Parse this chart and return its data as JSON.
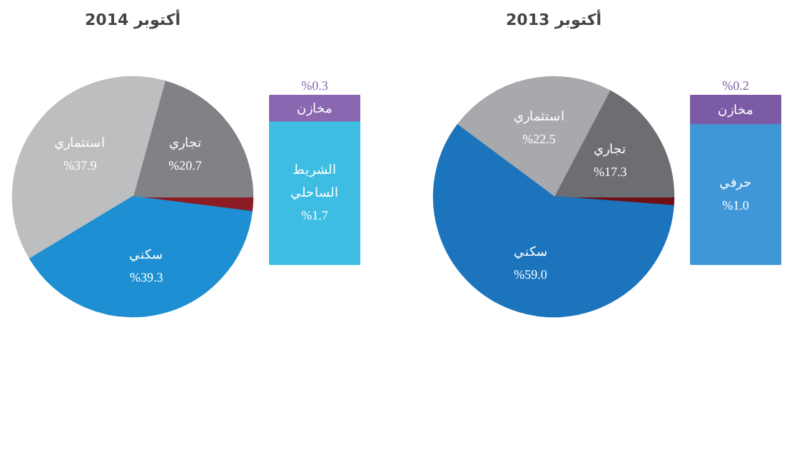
{
  "chart_data": [
    {
      "type": "pie",
      "title": "أكتوبر 2014",
      "categories": [
        null,
        "تجاري",
        "استثماري",
        "سكني"
      ],
      "values": [
        2.0,
        20.7,
        37.9,
        39.3
      ],
      "colors": [
        "#8b1c24",
        "#808285",
        "#bcbec0",
        "#1e8fd2"
      ],
      "value_labels": [
        null,
        "%20.7",
        "%37.9",
        "%39.3"
      ]
    },
    {
      "type": "bar",
      "stacked": true,
      "categories": [
        null
      ],
      "series": [
        {
          "name": "الشريط الساحلي",
          "color": "#3dbde2",
          "values": [
            1.7
          ],
          "value_labels": [
            "%1.7"
          ]
        },
        {
          "name": "مخازن",
          "color": "#8a67b0",
          "values": [
            0.3
          ],
          "value_labels": [
            "%0.3"
          ]
        }
      ]
    },
    {
      "type": "pie",
      "title": "أكتوبر 2013",
      "categories": [
        null,
        "تجاري",
        "استثماري",
        "سكني"
      ],
      "values": [
        1.2,
        17.3,
        22.5,
        59.0
      ],
      "colors": [
        "#6e0f14",
        "#6d6e71",
        "#a7a9ac",
        "#1c74bc"
      ],
      "value_labels": [
        null,
        "%17.3",
        "%22.5",
        "%59.0"
      ]
    },
    {
      "type": "bar",
      "stacked": true,
      "categories": [
        null
      ],
      "series": [
        {
          "name": "حرفي",
          "color": "#3f97d8",
          "values": [
            1.0
          ],
          "value_labels": [
            "%1.0"
          ]
        },
        {
          "name": "مخازن",
          "color": "#7c5ba6",
          "values": [
            0.2
          ],
          "value_labels": [
            "%0.2"
          ]
        }
      ]
    }
  ]
}
